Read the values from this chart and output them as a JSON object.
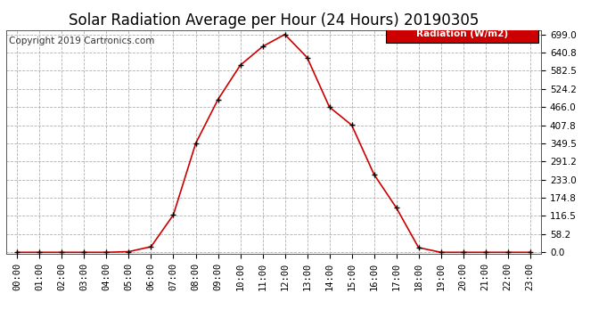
{
  "title": "Solar Radiation Average per Hour (24 Hours) 20190305",
  "copyright": "Copyright 2019 Cartronics.com",
  "legend_label": "Radiation (W/m2)",
  "hours": [
    0,
    1,
    2,
    3,
    4,
    5,
    6,
    7,
    8,
    9,
    10,
    11,
    12,
    13,
    14,
    15,
    16,
    17,
    18,
    19,
    20,
    21,
    22,
    23
  ],
  "values": [
    0,
    0,
    0,
    0,
    0,
    2,
    18,
    120,
    349,
    490,
    600,
    660,
    699,
    625,
    466,
    408,
    250,
    143,
    15,
    0,
    0,
    0,
    0,
    0
  ],
  "yticks": [
    0.0,
    58.2,
    116.5,
    174.8,
    233.0,
    291.2,
    349.5,
    407.8,
    466.0,
    524.2,
    582.5,
    640.8,
    699.0
  ],
  "line_color": "#cc0000",
  "marker_color": "#000000",
  "legend_bg": "#cc0000",
  "legend_text_color": "#ffffff",
  "background_color": "#ffffff",
  "grid_color": "#b0b0b0",
  "title_fontsize": 12,
  "copyright_fontsize": 7.5,
  "tick_fontsize": 7.5
}
